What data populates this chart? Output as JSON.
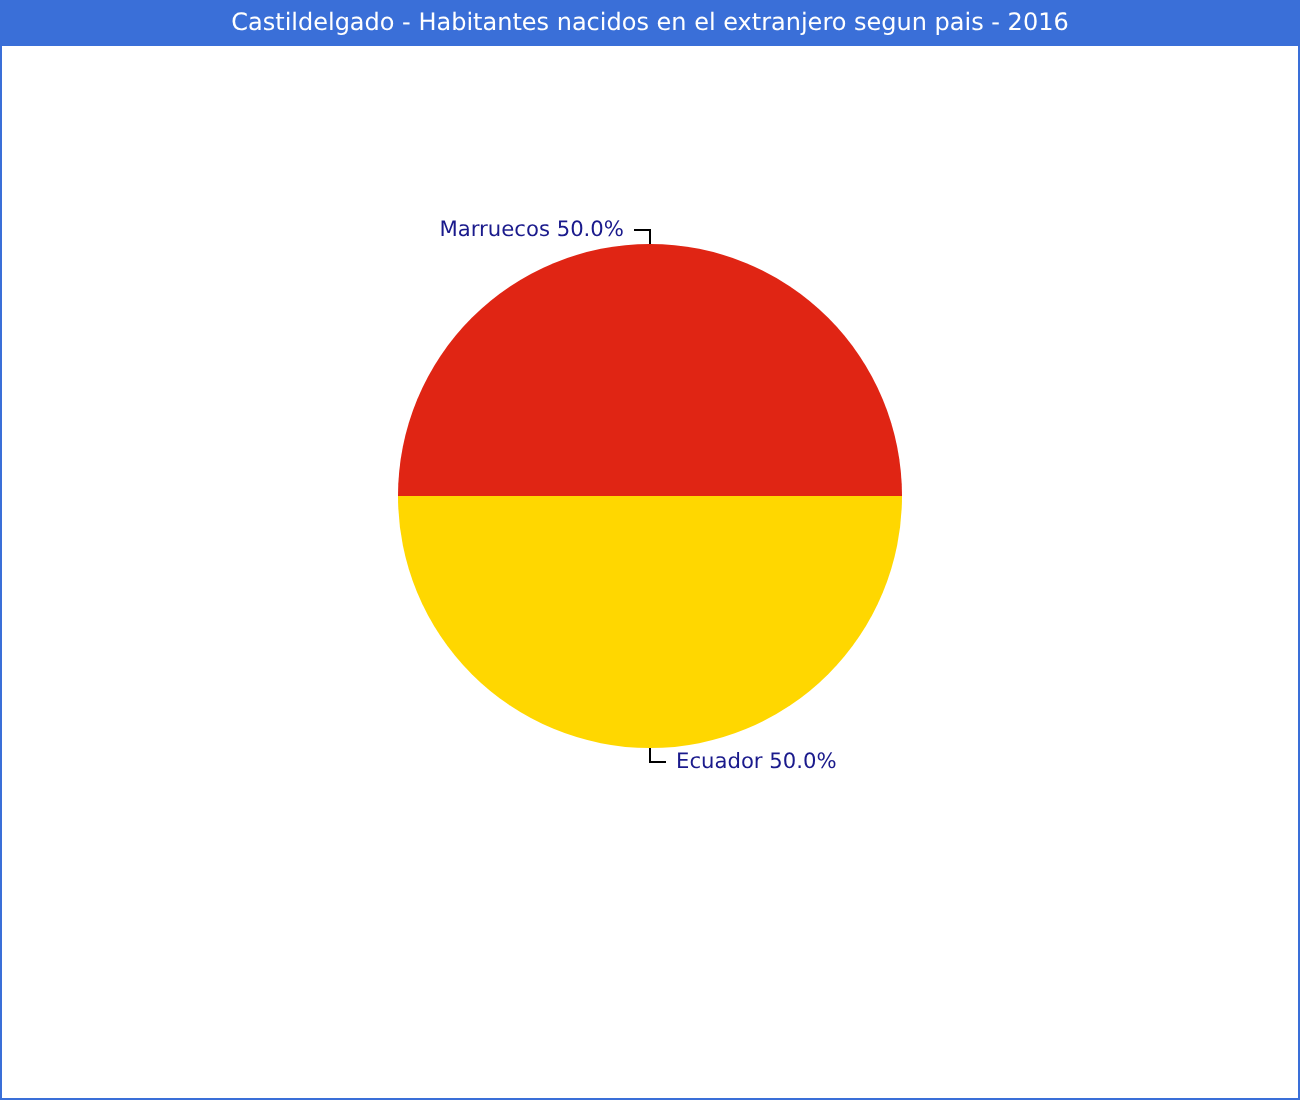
{
  "chart_data": {
    "type": "pie",
    "title": "Castildelgado - Habitantes nacidos en el extranjero segun pais - 2016",
    "categories": [
      "Marruecos",
      "Ecuador"
    ],
    "values": [
      50,
      50
    ],
    "colors": [
      "#e02514",
      "#ffd700"
    ],
    "value_labels": [
      "50.0%",
      "50.0%"
    ],
    "legend": false
  }
}
